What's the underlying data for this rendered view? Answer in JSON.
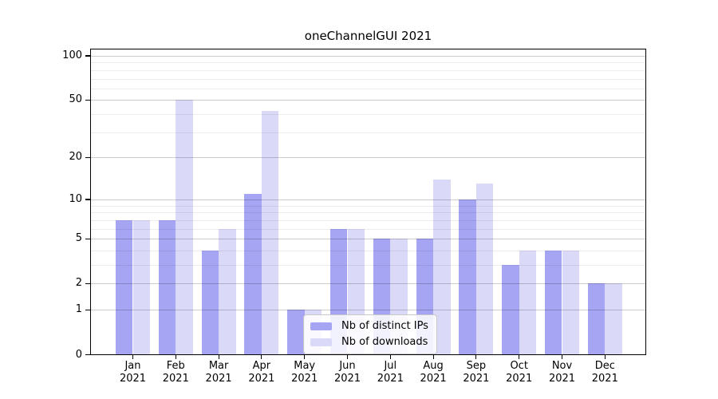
{
  "window": {
    "background": "#ffffff"
  },
  "chart_data": {
    "type": "bar",
    "title": "oneChannelGUI 2021",
    "categories": [
      "Jan",
      "Feb",
      "Mar",
      "Apr",
      "May",
      "Jun",
      "Jul",
      "Aug",
      "Sep",
      "Oct",
      "Nov",
      "Dec"
    ],
    "category_year_line": "2021",
    "series": [
      {
        "name": "Nb of distinct IPs",
        "color": "#a5a5f4",
        "values": [
          7,
          7,
          4,
          11,
          1,
          6,
          5,
          5,
          10,
          3,
          4,
          2
        ]
      },
      {
        "name": "Nb of downloads",
        "color": "#dadaf8",
        "values": [
          7,
          50,
          6,
          42,
          1,
          6,
          5,
          14,
          13,
          4,
          4,
          2
        ]
      }
    ],
    "xlabel": "",
    "ylabel": "",
    "y_axis": {
      "scale": "log10(1+y)",
      "tick_labels": [
        0,
        1,
        2,
        5,
        10,
        20,
        50,
        100
      ],
      "minor_gridlines": [
        3,
        4,
        6,
        7,
        8,
        9,
        30,
        40,
        60,
        70,
        80,
        90
      ],
      "ylim": [
        0,
        110
      ]
    },
    "grid": "on",
    "legend_position": "lower-center-inside",
    "colors": {
      "major_grid": "rgba(0,0,0,0.20)",
      "minor_grid": "rgba(0,0,0,0.07)",
      "axis_text": "#000000"
    }
  }
}
